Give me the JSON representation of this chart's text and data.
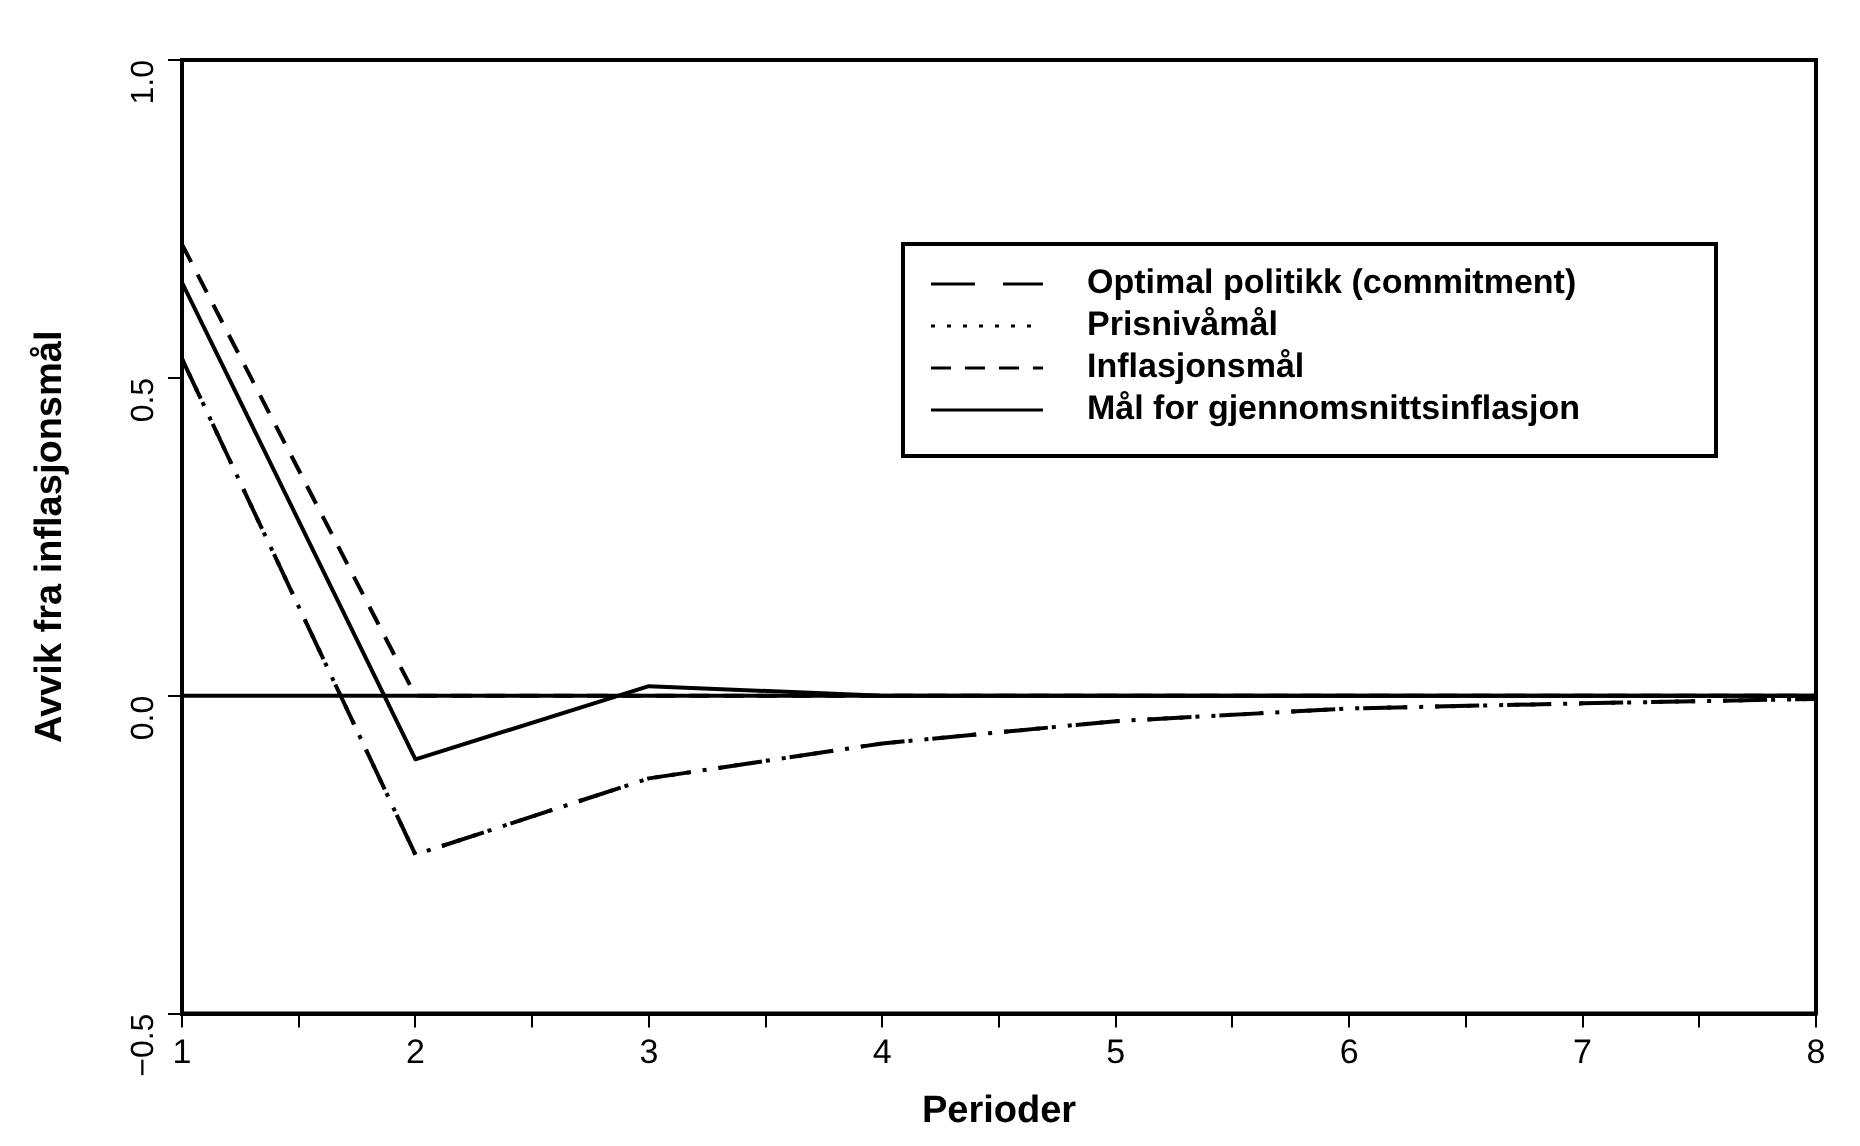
{
  "chart_data": {
    "type": "line",
    "xlabel": "Perioder",
    "ylabel": "Avvik fra inflasjonsmål",
    "x": [
      1,
      2,
      3,
      4,
      5,
      6,
      7,
      8
    ],
    "series": [
      {
        "name": "Optimal politikk (commitment)",
        "color": "#000000",
        "line_style": "dashed",
        "values": [
          0.53,
          -0.25,
          -0.13,
          -0.075,
          -0.04,
          -0.02,
          -0.012,
          -0.005
        ]
      },
      {
        "name": "Prisnivåmål",
        "color": "#000000",
        "line_style": "dotted",
        "values": [
          0.53,
          -0.25,
          -0.13,
          -0.075,
          -0.04,
          -0.02,
          -0.012,
          -0.005
        ]
      },
      {
        "name": "Inflasjonsmål",
        "color": "#000000",
        "line_style": "short-dashed",
        "values": [
          0.71,
          0,
          0,
          0,
          0,
          0,
          0,
          0
        ]
      },
      {
        "name": "Mål for gjennomsnittsinflasjon",
        "color": "#000000",
        "line_style": "solid",
        "values": [
          0.65,
          -0.1,
          0.015,
          0,
          0,
          0,
          0,
          0
        ]
      }
    ],
    "xlim": [
      1,
      8
    ],
    "xticks": [
      1,
      {
        "value": 1.5,
        "label": null
      },
      2,
      {
        "value": 2.5,
        "label": null
      },
      3,
      {
        "value": 3.5,
        "label": null
      },
      4,
      {
        "value": 4.5,
        "label": null
      },
      5,
      {
        "value": 5.5,
        "label": null
      },
      6,
      {
        "value": 6.5,
        "label": null
      },
      7,
      {
        "value": 7.5,
        "label": null
      },
      8
    ],
    "ylim": [
      -0.5,
      1.0
    ],
    "yticks": [
      {
        "value": -0.5,
        "label": "−0.5"
      },
      {
        "value": 0,
        "label": "0.0"
      },
      {
        "value": 0.5,
        "label": "0.5"
      },
      {
        "value": 1.0,
        "label": "1.0"
      }
    ],
    "ref_lines": [
      {
        "axis": "y",
        "value": 0,
        "color": "#000000",
        "line_style": "solid"
      }
    ],
    "grid": false,
    "legend": "top right",
    "marker": "none"
  }
}
